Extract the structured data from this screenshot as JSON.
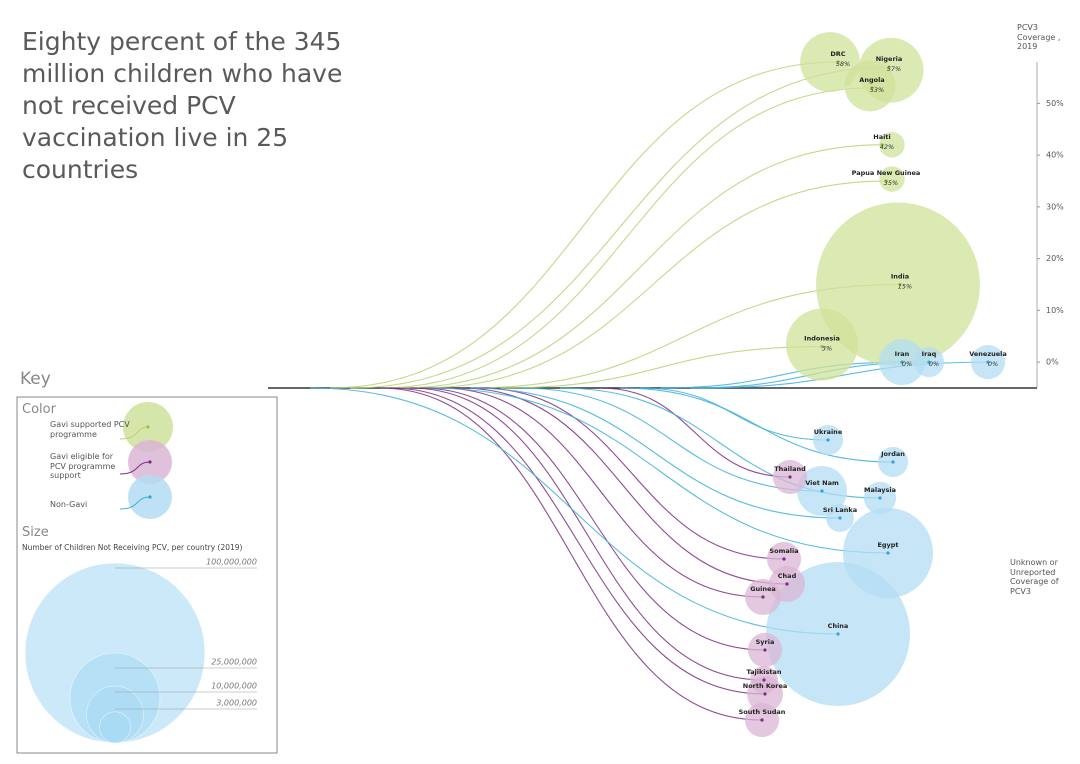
{
  "chart_data": {
    "type": "bubble-flow",
    "title": "Eighty percent of the 345 million children who have not received PCV vaccination live in 25 countries",
    "y_axis_label": "PCV3 Coverage , 2019",
    "unknown_label": "Unknown or Unreported Coverage of PCV3",
    "ylim": [
      -5,
      58
    ],
    "yticks": [
      {
        "value": 0,
        "label": "0%"
      },
      {
        "value": 10,
        "label": "10%"
      },
      {
        "value": 20,
        "label": "20%"
      },
      {
        "value": 30,
        "label": "30%"
      },
      {
        "value": 40,
        "label": "40%"
      },
      {
        "value": 50,
        "label": "50%"
      }
    ],
    "series": [
      {
        "name": "Gavi supported PCV programme",
        "color": "#b9d276",
        "countries": [
          "DRC",
          "Nigeria",
          "Angola",
          "Haiti",
          "Papua New Guinea",
          "India",
          "Indonesia"
        ],
        "values": [
          58,
          57,
          53,
          42,
          35,
          15,
          3
        ],
        "value_labels": [
          "58%",
          "57%",
          "53%",
          "42%",
          "35%",
          "15%",
          "3%"
        ],
        "sizes": [
          11000000,
          13000000,
          8000000,
          2000000,
          2000000,
          83000000,
          16000000
        ]
      },
      {
        "name": "Gavi eligible for PCV programme support",
        "color": "#7d2b80",
        "countries": [
          "Thailand",
          "Somalia",
          "Chad",
          "Guinea",
          "Syria",
          "Tajikistan",
          "North Korea",
          "South Sudan"
        ],
        "values": [
          null,
          null,
          null,
          null,
          null,
          null,
          null,
          null
        ],
        "sizes": [
          3600000,
          3600000,
          4000000,
          4000000,
          3600000,
          2400000,
          4000000,
          3600000
        ]
      },
      {
        "name": "Non-Gavi",
        "color": "#3db1dc",
        "countries": [
          "Iran",
          "Iraq",
          "Venezuela",
          "Ukraine",
          "Jordan",
          "Viet Nam",
          "Malaysia",
          "Sri Lanka",
          "Egypt",
          "China"
        ],
        "values": [
          0,
          0,
          0,
          null,
          null,
          null,
          null,
          null,
          null,
          null
        ],
        "value_labels": [
          "0%",
          "0%",
          "0%",
          null,
          null,
          null,
          null,
          null,
          null,
          null
        ],
        "sizes": [
          6500000,
          2800000,
          3600000,
          2800000,
          2800000,
          7700000,
          3200000,
          2400000,
          25000000,
          64000000
        ]
      }
    ],
    "key_title": "Key",
    "color_legend_title": "Color",
    "size_legend": {
      "title": "Size",
      "caption": "Number of Children Not Receiving PCV, per country (2019)",
      "ticks": [
        {
          "value": 100000000,
          "label": "100,000,000"
        },
        {
          "value": 25000000,
          "label": "25,000,000"
        },
        {
          "value": 10000000,
          "label": "10,000,000"
        },
        {
          "value": 3000000,
          "label": "3,000,000"
        }
      ]
    }
  }
}
